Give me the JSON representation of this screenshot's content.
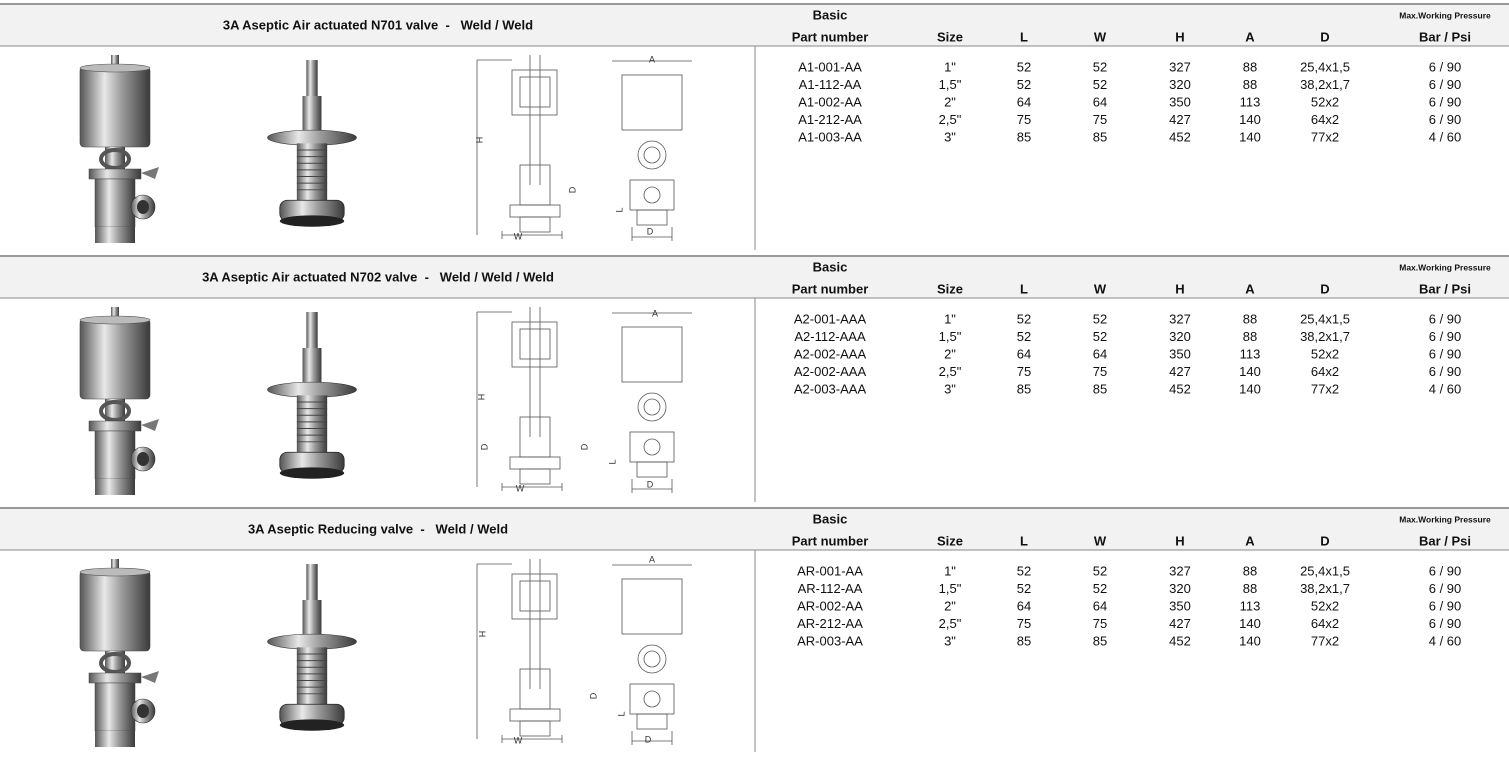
{
  "sections": [
    {
      "title": "3A Aseptic Air actuated N701 valve  -   Weld / Weld",
      "columns": [
        [
          "Basic",
          "Part number"
        ],
        [
          "Size"
        ],
        [
          "L"
        ],
        [
          "W"
        ],
        [
          "H"
        ],
        [
          "A"
        ],
        [
          "D"
        ],
        [
          "Max.Working Pressure",
          "Bar / Psi"
        ]
      ],
      "rows": [
        [
          "A1-001-AA",
          "1\"",
          "52",
          "52",
          "327",
          "88",
          "25,4x1,5",
          "6 / 90"
        ],
        [
          "A1-112-AA",
          "1,5\"",
          "52",
          "52",
          "320",
          "88",
          "38,2x1,7",
          "6 / 90"
        ],
        [
          "A1-002-AA",
          "2\"",
          "64",
          "64",
          "350",
          "113",
          "52x2",
          "6 / 90"
        ],
        [
          "A1-212-AA",
          "2,5\"",
          "75",
          "75",
          "427",
          "140",
          "64x2",
          "6 / 90"
        ],
        [
          "A1-003-AA",
          "3\"",
          "85",
          "85",
          "452",
          "140",
          "77x2",
          "4 / 60"
        ]
      ],
      "drawing_labels": [
        "A",
        "H",
        "D",
        "L",
        "W",
        "D"
      ]
    },
    {
      "title": "3A Aseptic Air actuated N702 valve  -   Weld / Weld / Weld",
      "columns": [
        [
          "Basic",
          "Part number"
        ],
        [
          "Size"
        ],
        [
          "L"
        ],
        [
          "W"
        ],
        [
          "H"
        ],
        [
          "A"
        ],
        [
          "D"
        ],
        [
          "Max.Working Pressure",
          "Bar / Psi"
        ]
      ],
      "rows": [
        [
          "A2-001-AAA",
          "1\"",
          "52",
          "52",
          "327",
          "88",
          "25,4x1,5",
          "6 / 90"
        ],
        [
          "A2-112-AAA",
          "1,5\"",
          "52",
          "52",
          "320",
          "88",
          "38,2x1,7",
          "6 / 90"
        ],
        [
          "A2-002-AAA",
          "2\"",
          "64",
          "64",
          "350",
          "113",
          "52x2",
          "6 / 90"
        ],
        [
          "A2-002-AAA",
          "2,5\"",
          "75",
          "75",
          "427",
          "140",
          "64x2",
          "6 / 90"
        ],
        [
          "A2-003-AAA",
          "3\"",
          "85",
          "85",
          "452",
          "140",
          "77x2",
          "4 / 60"
        ]
      ],
      "drawing_labels": [
        "A",
        "H",
        "D",
        "D",
        "L",
        "W",
        "D"
      ]
    },
    {
      "title": "3A Aseptic Reducing valve  -   Weld / Weld",
      "columns": [
        [
          "Basic",
          "Part number"
        ],
        [
          "Size"
        ],
        [
          "L"
        ],
        [
          "W"
        ],
        [
          "H"
        ],
        [
          "A"
        ],
        [
          "D"
        ],
        [
          "Max.Working Pressure",
          "Bar / Psi"
        ]
      ],
      "rows": [
        [
          "AR-001-AA",
          "1\"",
          "52",
          "52",
          "327",
          "88",
          "25,4x1,5",
          "6 / 90"
        ],
        [
          "AR-112-AA",
          "1,5\"",
          "52",
          "52",
          "320",
          "88",
          "38,2x1,7",
          "6 / 90"
        ],
        [
          "AR-002-AA",
          "2\"",
          "64",
          "64",
          "350",
          "113",
          "52x2",
          "6 / 90"
        ],
        [
          "AR-212-AA",
          "2,5\"",
          "75",
          "75",
          "427",
          "140",
          "64x2",
          "6 / 90"
        ],
        [
          "AR-003-AA",
          "3\"",
          "85",
          "85",
          "452",
          "140",
          "77x2",
          "4 / 60"
        ]
      ],
      "drawing_labels": [
        "A",
        "H",
        "D",
        "L",
        "W",
        "D"
      ]
    }
  ]
}
